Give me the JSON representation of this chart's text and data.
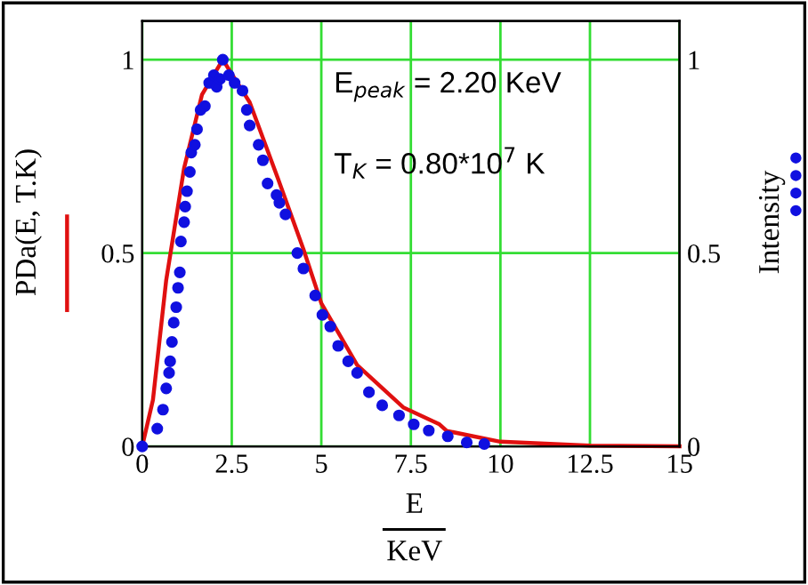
{
  "chart_data": {
    "type": "line",
    "xlabel": "E\nKeV",
    "ylabel": "PDa(E, T.K)",
    "y2label": "Intensity",
    "annotations": [
      "E$_{peak}$ = 2.20 KeV",
      "T$_{K}$ = 0.80*10$^{7}$ K"
    ],
    "xlim": [
      0,
      15
    ],
    "xticks": [
      0,
      2.5,
      5,
      7.5,
      10,
      12.5,
      15
    ],
    "ylim": [
      0,
      1.1
    ],
    "yticks": [
      0,
      0.5,
      1
    ],
    "y2lim": [
      0,
      1.1
    ],
    "y2ticks": [
      0,
      0.5,
      1
    ],
    "grid": true,
    "series": [
      {
        "color": "#e01010",
        "x": [
          0,
          0.3,
          0.67,
          1.17,
          1.67,
          2.25,
          3.0,
          3.8,
          4.5,
          5.0,
          6.0,
          7.3,
          8.3,
          8.5,
          10,
          12.5,
          15
        ],
        "values": [
          0,
          0.12,
          0.43,
          0.72,
          0.91,
          1.0,
          0.89,
          0.69,
          0.51,
          0.37,
          0.21,
          0.1,
          0.057,
          0.04,
          0.012,
          0.002,
          0
        ]
      },
      {
        "type": "scatter",
        "axis": "y2",
        "color": "#1010e0",
        "marker": "circle",
        "x": [
          0,
          0.42,
          0.58,
          0.67,
          0.75,
          0.78,
          0.83,
          0.88,
          0.95,
          1.0,
          1.05,
          1.08,
          1.17,
          1.2,
          1.25,
          1.33,
          1.37,
          1.47,
          1.53,
          1.63,
          1.75,
          1.87,
          2.0,
          2.08,
          2.17,
          2.25,
          2.42,
          2.58,
          2.8,
          2.92,
          3.0,
          3.25,
          3.37,
          3.5,
          3.75,
          3.83,
          4.0,
          4.33,
          4.5,
          4.83,
          5.03,
          5.25,
          5.47,
          5.75,
          6.0,
          6.33,
          6.7,
          7.17,
          7.58,
          8.0,
          8.53,
          9.06,
          9.55
        ],
        "values": [
          0,
          0.046,
          0.095,
          0.15,
          0.19,
          0.22,
          0.27,
          0.32,
          0.36,
          0.41,
          0.45,
          0.53,
          0.58,
          0.62,
          0.66,
          0.71,
          0.76,
          0.78,
          0.82,
          0.87,
          0.88,
          0.94,
          0.96,
          0.93,
          0.95,
          1.0,
          0.96,
          0.94,
          0.92,
          0.87,
          0.83,
          0.78,
          0.74,
          0.68,
          0.65,
          0.63,
          0.6,
          0.5,
          0.46,
          0.39,
          0.34,
          0.31,
          0.26,
          0.22,
          0.19,
          0.14,
          0.106,
          0.08,
          0.057,
          0.041,
          0.026,
          0.01,
          0.006
        ]
      }
    ]
  }
}
